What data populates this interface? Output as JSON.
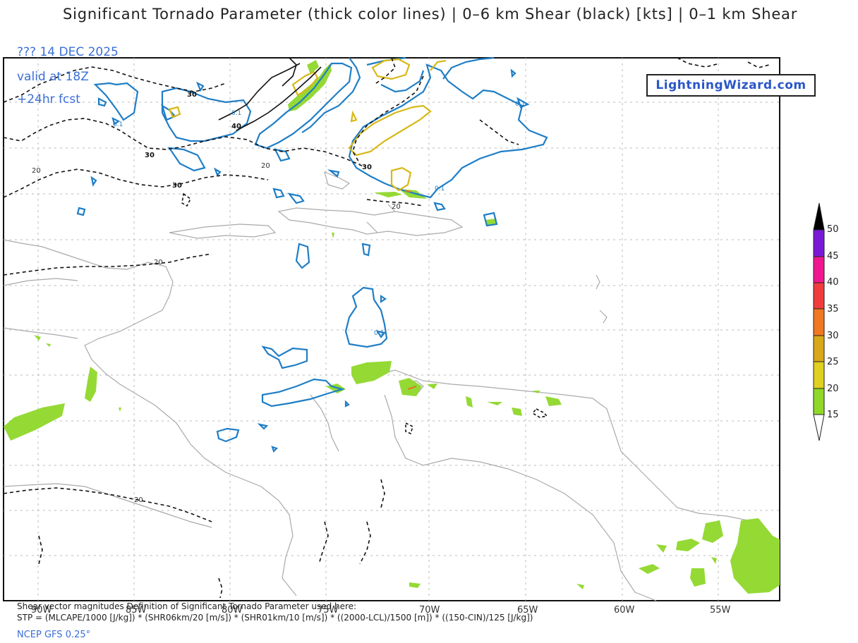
{
  "header": {
    "title": "Significant Tornado Parameter (thick color lines) | 0–6 km Shear (black) [kts] | 0–1 km Shear",
    "date": "??? 14 DEC 2025",
    "valid": "valid at 18Z",
    "forecast": "+24hr fcst"
  },
  "brand": {
    "label": "LightningWizard.com"
  },
  "footer": {
    "line1": "Shear vector magnitudes  Definition of Significant Tornado Parameter used here:",
    "line2": "STP = (MLCAPE/1000 [J/kg]) * (SHR06km/20 [m/s]) * (SHR01km/10 [m/s]) * ((2000-LCL)/1500 [m]) * ((150-CIN)/125 [J/kg])",
    "model": "NCEP GFS 0.25°"
  },
  "longitude_labels": [
    "90W",
    "85W",
    "80W",
    "75W",
    "70W",
    "65W",
    "60W",
    "55W"
  ],
  "contour_labels": {
    "shear_30": "30",
    "shear_40": "40",
    "shear_20": "20",
    "stp_01": "0.1"
  },
  "colorbar": {
    "labels": [
      "50",
      "45",
      "40",
      "35",
      "30",
      "25",
      "20",
      "15"
    ],
    "colors": [
      "#000000",
      "#7a18d8",
      "#f01890",
      "#f03c3c",
      "#f07820",
      "#d8a818",
      "#e0d020",
      "#90d828"
    ]
  }
}
